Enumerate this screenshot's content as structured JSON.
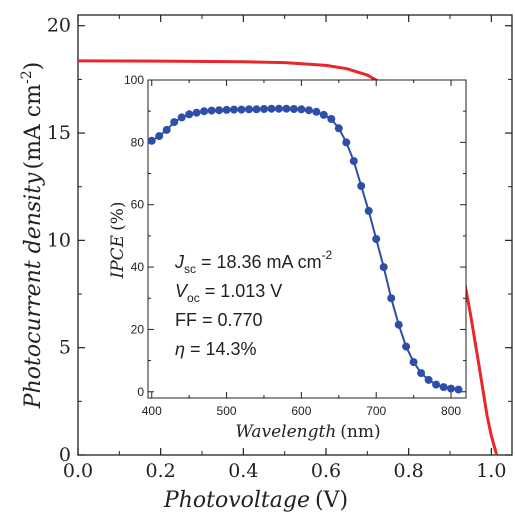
{
  "chart_data": [
    {
      "type": "line",
      "xlabel": "Photovoltage",
      "xunit": "(V)",
      "ylabel": "Photocurrent density",
      "yunit": "(mA cm",
      "yunit_sup": "-2",
      "yunit_close": ")",
      "xlim": [
        0,
        1.05
      ],
      "ylim": [
        0,
        20.5
      ],
      "x_ticks": [
        "0.0",
        "0.2",
        "0.4",
        "0.6",
        "0.8",
        "1.0"
      ],
      "y_ticks": [
        "0",
        "5",
        "10",
        "15",
        "20"
      ],
      "x_tick_values": [
        0,
        0.2,
        0.4,
        0.6,
        0.8,
        1.0
      ],
      "y_tick_values": [
        0,
        5,
        10,
        15,
        20
      ],
      "grid": false,
      "series": [
        {
          "color": "#e8262b",
          "x": [
            0,
            0.2,
            0.4,
            0.5,
            0.6,
            0.65,
            0.7,
            0.75,
            0.8,
            0.85,
            0.9,
            0.93,
            0.95,
            0.97,
            0.99,
            1.0,
            1.013
          ],
          "y": [
            18.36,
            18.35,
            18.32,
            18.28,
            18.15,
            18.0,
            17.7,
            17.15,
            16.1,
            14.3,
            11.2,
            8.6,
            6.5,
            4.2,
            1.8,
            0.9,
            0
          ]
        }
      ],
      "annotations": [
        {
          "main": "J",
          "sub": "sc",
          "rest": " = 18.36 mA cm",
          "sup": "-2"
        },
        {
          "main": "V",
          "sub": "oc",
          "rest": " = 1.013 V",
          "sup": ""
        },
        {
          "main": "",
          "sub": "",
          "rest": "FF = 0.770",
          "sup": ""
        },
        {
          "main": "η",
          "sub": "",
          "rest": " = 14.3%",
          "sup": ""
        }
      ]
    },
    {
      "type": "line",
      "xlabel": "Wavelength",
      "xunit": "(nm)",
      "ylabel": "IPCE",
      "yunit": "(%)",
      "xlim": [
        395,
        820
      ],
      "ylim": [
        -2,
        100
      ],
      "x_ticks": [
        "400",
        "500",
        "600",
        "700",
        "800"
      ],
      "y_ticks": [
        "0",
        "20",
        "40",
        "60",
        "80",
        "100"
      ],
      "x_tick_values": [
        400,
        500,
        600,
        700,
        800
      ],
      "y_tick_values": [
        0,
        20,
        40,
        60,
        80,
        100
      ],
      "grid": false,
      "series": [
        {
          "color": "#2e4fa8",
          "x": [
            400,
            410,
            420,
            430,
            440,
            450,
            460,
            470,
            480,
            490,
            500,
            510,
            520,
            530,
            540,
            550,
            560,
            570,
            580,
            590,
            600,
            610,
            620,
            630,
            640,
            650,
            660,
            670,
            680,
            690,
            700,
            710,
            720,
            730,
            740,
            750,
            760,
            770,
            780,
            790,
            800,
            810
          ],
          "y": [
            80.5,
            82.0,
            84.0,
            86.5,
            88.0,
            89.0,
            89.5,
            90.0,
            90.2,
            90.3,
            90.4,
            90.5,
            90.5,
            90.6,
            90.6,
            90.7,
            90.8,
            90.8,
            90.8,
            90.7,
            90.6,
            90.3,
            89.8,
            88.8,
            87.5,
            84.5,
            80.0,
            74.0,
            66.0,
            58.0,
            49.0,
            40.0,
            30.0,
            21.5,
            14.5,
            9.5,
            6.0,
            3.8,
            2.3,
            1.5,
            1.0,
            0.7
          ]
        }
      ]
    }
  ]
}
